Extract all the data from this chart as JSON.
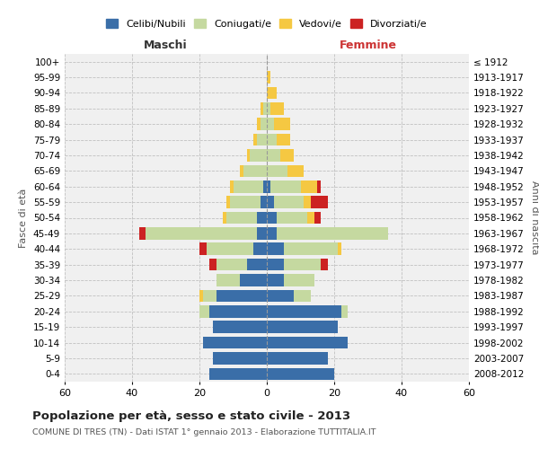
{
  "age_groups": [
    "0-4",
    "5-9",
    "10-14",
    "15-19",
    "20-24",
    "25-29",
    "30-34",
    "35-39",
    "40-44",
    "45-49",
    "50-54",
    "55-59",
    "60-64",
    "65-69",
    "70-74",
    "75-79",
    "80-84",
    "85-89",
    "90-94",
    "95-99",
    "100+"
  ],
  "birth_years": [
    "2008-2012",
    "2003-2007",
    "1998-2002",
    "1993-1997",
    "1988-1992",
    "1983-1987",
    "1978-1982",
    "1973-1977",
    "1968-1972",
    "1963-1967",
    "1958-1962",
    "1953-1957",
    "1948-1952",
    "1943-1947",
    "1938-1942",
    "1933-1937",
    "1928-1932",
    "1923-1927",
    "1918-1922",
    "1913-1917",
    "≤ 1912"
  ],
  "maschi": {
    "celibi": [
      17,
      16,
      19,
      16,
      17,
      15,
      8,
      6,
      4,
      3,
      3,
      2,
      1,
      0,
      0,
      0,
      0,
      0,
      0,
      0,
      0
    ],
    "coniugati": [
      0,
      0,
      0,
      0,
      3,
      4,
      7,
      9,
      14,
      33,
      9,
      9,
      9,
      7,
      5,
      3,
      2,
      1,
      0,
      0,
      0
    ],
    "vedovi": [
      0,
      0,
      0,
      0,
      0,
      1,
      0,
      0,
      0,
      0,
      1,
      1,
      1,
      1,
      1,
      1,
      1,
      1,
      0,
      0,
      0
    ],
    "divorziati": [
      0,
      0,
      0,
      0,
      0,
      0,
      0,
      2,
      2,
      2,
      0,
      0,
      0,
      0,
      0,
      0,
      0,
      0,
      0,
      0,
      0
    ]
  },
  "femmine": {
    "nubili": [
      20,
      18,
      24,
      21,
      22,
      8,
      5,
      5,
      5,
      3,
      3,
      2,
      1,
      0,
      0,
      0,
      0,
      0,
      0,
      0,
      0
    ],
    "coniugate": [
      0,
      0,
      0,
      0,
      2,
      5,
      9,
      11,
      16,
      33,
      9,
      9,
      9,
      6,
      4,
      3,
      2,
      1,
      0,
      0,
      0
    ],
    "vedove": [
      0,
      0,
      0,
      0,
      0,
      0,
      0,
      0,
      1,
      0,
      2,
      2,
      5,
      5,
      4,
      4,
      5,
      4,
      3,
      1,
      0
    ],
    "divorziate": [
      0,
      0,
      0,
      0,
      0,
      0,
      0,
      2,
      0,
      0,
      2,
      5,
      1,
      0,
      0,
      0,
      0,
      0,
      0,
      0,
      0
    ]
  },
  "colors": {
    "celibi_nubili": "#3a6ea8",
    "coniugati": "#c5d9a0",
    "vedovi": "#f5c842",
    "divorziati": "#cc2222"
  },
  "xlim": 60,
  "title": "Popolazione per età, sesso e stato civile - 2013",
  "subtitle": "COMUNE DI TRES (TN) - Dati ISTAT 1° gennaio 2013 - Elaborazione TUTTITALIA.IT",
  "ylabel_left": "Fasce di età",
  "ylabel_right": "Anni di nascita",
  "xlabel_left": "Maschi",
  "xlabel_right": "Femmine",
  "legend_labels": [
    "Celibi/Nubili",
    "Coniugati/e",
    "Vedovi/e",
    "Divorziati/e"
  ],
  "background_color": "#f0f0f0"
}
